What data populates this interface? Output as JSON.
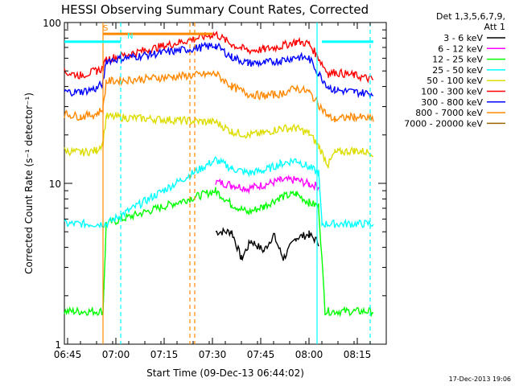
{
  "chart_data": {
    "type": "line",
    "title": "HESSI Observing Summary Count Rates, Corrected",
    "xlabel": "Start Time (09-Dec-13 06:44:02)",
    "ylabel": "Corrected Count Rate (s⁻¹ detector⁻¹)",
    "yscale": "log",
    "ylim": [
      1,
      100
    ],
    "xlim_minutes": [
      0,
      100
    ],
    "x_tick_labels": [
      "06:45",
      "07:00",
      "07:15",
      "07:30",
      "07:45",
      "08:00",
      "08:15"
    ],
    "x_tick_minutes": [
      1,
      16,
      31,
      46,
      61,
      76,
      91
    ],
    "y_tick_labels": [
      "1",
      "10",
      "100"
    ],
    "y_tick_values": [
      1,
      10,
      100
    ],
    "legend_header": [
      "Det 1,3,5,6,7,9,",
      "Att 1"
    ],
    "legend_placement": "right",
    "series": [
      {
        "name": "3 - 6 keV",
        "color": "#000000",
        "points": [
          [
            47,
            5
          ],
          [
            52,
            5
          ],
          [
            55,
            3.4
          ],
          [
            58,
            4.4
          ],
          [
            62,
            3.8
          ],
          [
            65,
            4.8
          ],
          [
            68,
            3.4
          ],
          [
            72,
            4.6
          ],
          [
            76,
            4.8
          ],
          [
            79,
            4.3
          ]
        ]
      },
      {
        "name": "6 - 12 keV",
        "color": "#ff00ff",
        "points": [
          [
            47,
            10.2
          ],
          [
            52,
            9.8
          ],
          [
            57,
            9.3
          ],
          [
            62,
            9.8
          ],
          [
            67,
            10.4
          ],
          [
            72,
            10.5
          ],
          [
            76,
            9.9
          ],
          [
            79,
            9.6
          ]
        ]
      },
      {
        "name": "12 - 25 keV",
        "color": "#00ff00",
        "points": [
          [
            0,
            1.6
          ],
          [
            12,
            1.6
          ],
          [
            13,
            5.6
          ],
          [
            47,
            9
          ],
          [
            52,
            7.4
          ],
          [
            57,
            6.6
          ],
          [
            62,
            7.2
          ],
          [
            67,
            8.2
          ],
          [
            72,
            8.6
          ],
          [
            76,
            7.6
          ],
          [
            79,
            7.2
          ],
          [
            81,
            1.6
          ],
          [
            96,
            1.6
          ]
        ]
      },
      {
        "name": "25 - 50 keV",
        "color": "#00ffff",
        "points": [
          [
            0,
            5.6
          ],
          [
            12,
            5.6
          ],
          [
            13,
            5.6
          ],
          [
            47,
            14
          ],
          [
            52,
            12.4
          ],
          [
            57,
            11.6
          ],
          [
            62,
            12
          ],
          [
            67,
            13.2
          ],
          [
            72,
            14
          ],
          [
            76,
            12.6
          ],
          [
            79,
            11.6
          ],
          [
            80,
            5.6
          ],
          [
            96,
            5.6
          ]
        ]
      },
      {
        "name": "50 - 100 keV",
        "color": "#dddd00",
        "points": [
          [
            0,
            16
          ],
          [
            5,
            15.5
          ],
          [
            10,
            16
          ],
          [
            12,
            18
          ],
          [
            13,
            26
          ],
          [
            47,
            24
          ],
          [
            52,
            21
          ],
          [
            57,
            20
          ],
          [
            62,
            20.5
          ],
          [
            67,
            22
          ],
          [
            72,
            22
          ],
          [
            76,
            20.5
          ],
          [
            79,
            17
          ],
          [
            82,
            13
          ],
          [
            84,
            15.5
          ],
          [
            90,
            16
          ],
          [
            96,
            15.5
          ]
        ]
      },
      {
        "name": "100 - 300 keV",
        "color": "#ff0000",
        "points": [
          [
            0,
            49
          ],
          [
            5,
            47
          ],
          [
            10,
            50
          ],
          [
            12,
            52
          ],
          [
            13,
            59
          ],
          [
            47,
            85
          ],
          [
            52,
            73
          ],
          [
            57,
            67
          ],
          [
            62,
            68
          ],
          [
            67,
            71
          ],
          [
            72,
            76
          ],
          [
            76,
            74
          ],
          [
            79,
            60
          ],
          [
            82,
            48
          ],
          [
            84,
            49
          ],
          [
            90,
            47
          ],
          [
            96,
            44
          ]
        ]
      },
      {
        "name": "300 - 800 keV",
        "color": "#0000ff",
        "points": [
          [
            0,
            37
          ],
          [
            5,
            37
          ],
          [
            10,
            39
          ],
          [
            12,
            42
          ],
          [
            13,
            58
          ],
          [
            47,
            72
          ],
          [
            52,
            61
          ],
          [
            57,
            56
          ],
          [
            62,
            56
          ],
          [
            67,
            58
          ],
          [
            72,
            61
          ],
          [
            76,
            60
          ],
          [
            79,
            48
          ],
          [
            82,
            40
          ],
          [
            84,
            38
          ],
          [
            90,
            37
          ],
          [
            96,
            36
          ]
        ]
      },
      {
        "name": "800 - 7000 keV",
        "color": "#ff8800",
        "points": [
          [
            0,
            27
          ],
          [
            5,
            26
          ],
          [
            10,
            27
          ],
          [
            12,
            29
          ],
          [
            13,
            43
          ],
          [
            47,
            48
          ],
          [
            52,
            40
          ],
          [
            57,
            36
          ],
          [
            62,
            35
          ],
          [
            67,
            36
          ],
          [
            72,
            39
          ],
          [
            76,
            37
          ],
          [
            79,
            31
          ],
          [
            82,
            26
          ],
          [
            84,
            25
          ],
          [
            90,
            26
          ],
          [
            96,
            25
          ]
        ]
      },
      {
        "name": "7000 - 20000 keV",
        "color": "#996600",
        "points": []
      }
    ],
    "annotations": [
      {
        "label": "S",
        "color": "#ff8800",
        "start_minutes": 12,
        "end_minutes": 46,
        "level": 85
      },
      {
        "label": "N",
        "color": "#00ffff",
        "start_minutes": 0,
        "end_minutes": 17.5,
        "level": 76
      }
    ],
    "saa_bar": {
      "color": "#00ffff",
      "start_minutes": 80,
      "end_minutes": 96,
      "level": 76
    },
    "vertical_markers": [
      {
        "minute": 12,
        "color": "#ff8800",
        "style": "solid"
      },
      {
        "minute": 17.5,
        "color": "#00ffff",
        "style": "dashed"
      },
      {
        "minute": 39,
        "color": "#ff8800",
        "style": "dashed"
      },
      {
        "minute": 40.5,
        "color": "#ff8800",
        "style": "dashed"
      },
      {
        "minute": 78.5,
        "color": "#00ffff",
        "style": "solid"
      },
      {
        "minute": 95,
        "color": "#00ffff",
        "style": "dashed"
      }
    ],
    "grid": false
  },
  "footer": {
    "timestamp": "17-Dec-2013 19:06"
  }
}
